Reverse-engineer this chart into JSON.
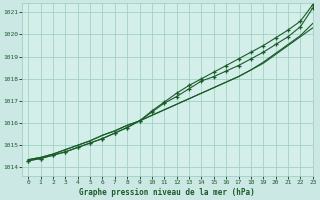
{
  "title": "Graphe pression niveau de la mer (hPa)",
  "background_color": "#cce8e4",
  "plot_bg_color": "#d4eeea",
  "grid_color": "#99ccbb",
  "line_color": "#1a5c2a",
  "xlim": [
    -0.5,
    23
  ],
  "ylim": [
    1013.6,
    1021.4
  ],
  "xtick_labels": [
    "0",
    "1",
    "2",
    "3",
    "4",
    "5",
    "6",
    "7",
    "8",
    "9",
    "10",
    "11",
    "12",
    "13",
    "14",
    "15",
    "16",
    "17",
    "18",
    "19",
    "20",
    "21",
    "22",
    "23"
  ],
  "xticks": [
    0,
    1,
    2,
    3,
    4,
    5,
    6,
    7,
    8,
    9,
    10,
    11,
    12,
    13,
    14,
    15,
    16,
    17,
    18,
    19,
    20,
    21,
    22,
    23
  ],
  "yticks": [
    1014,
    1015,
    1016,
    1017,
    1018,
    1019,
    1020,
    1021
  ],
  "line1_x": [
    0,
    1,
    2,
    3,
    4,
    5,
    6,
    7,
    8,
    9,
    10,
    11,
    12,
    13,
    14,
    15,
    16,
    17,
    18,
    19,
    20,
    21,
    22,
    23
  ],
  "line1_y": [
    1014.35,
    1014.45,
    1014.6,
    1014.8,
    1015.0,
    1015.2,
    1015.45,
    1015.65,
    1015.9,
    1016.1,
    1016.35,
    1016.6,
    1016.85,
    1017.1,
    1017.35,
    1017.6,
    1017.85,
    1018.1,
    1018.4,
    1018.7,
    1019.1,
    1019.5,
    1019.9,
    1020.3
  ],
  "line2_x": [
    0,
    1,
    2,
    3,
    4,
    5,
    6,
    7,
    8,
    9,
    10,
    11,
    12,
    13,
    14,
    15,
    16,
    17,
    18,
    19,
    20,
    21,
    22,
    23
  ],
  "line2_y": [
    1014.35,
    1014.45,
    1014.6,
    1014.8,
    1015.0,
    1015.2,
    1015.45,
    1015.65,
    1015.9,
    1016.1,
    1016.35,
    1016.6,
    1016.85,
    1017.1,
    1017.35,
    1017.6,
    1017.85,
    1018.1,
    1018.4,
    1018.75,
    1019.15,
    1019.55,
    1019.95,
    1020.5
  ],
  "line3_x": [
    0,
    1,
    2,
    3,
    4,
    5,
    6,
    7,
    8,
    9,
    10,
    11,
    12,
    13,
    14,
    15,
    16,
    17,
    18,
    19,
    20,
    21,
    22,
    23
  ],
  "line3_y": [
    1014.3,
    1014.4,
    1014.55,
    1014.7,
    1014.9,
    1015.1,
    1015.3,
    1015.55,
    1015.8,
    1016.1,
    1016.5,
    1016.9,
    1017.2,
    1017.55,
    1017.9,
    1018.1,
    1018.35,
    1018.6,
    1018.9,
    1019.2,
    1019.55,
    1019.9,
    1020.35,
    1021.2
  ],
  "line4_x": [
    0,
    1,
    2,
    3,
    4,
    5,
    6,
    7,
    8,
    9,
    10,
    11,
    12,
    13,
    14,
    15,
    16,
    17,
    18,
    19,
    20,
    21,
    22,
    23
  ],
  "line4_y": [
    1014.3,
    1014.4,
    1014.55,
    1014.7,
    1014.9,
    1015.1,
    1015.3,
    1015.55,
    1015.8,
    1016.1,
    1016.55,
    1016.95,
    1017.35,
    1017.7,
    1018.0,
    1018.3,
    1018.6,
    1018.9,
    1019.2,
    1019.5,
    1019.85,
    1020.2,
    1020.6,
    1021.35
  ]
}
